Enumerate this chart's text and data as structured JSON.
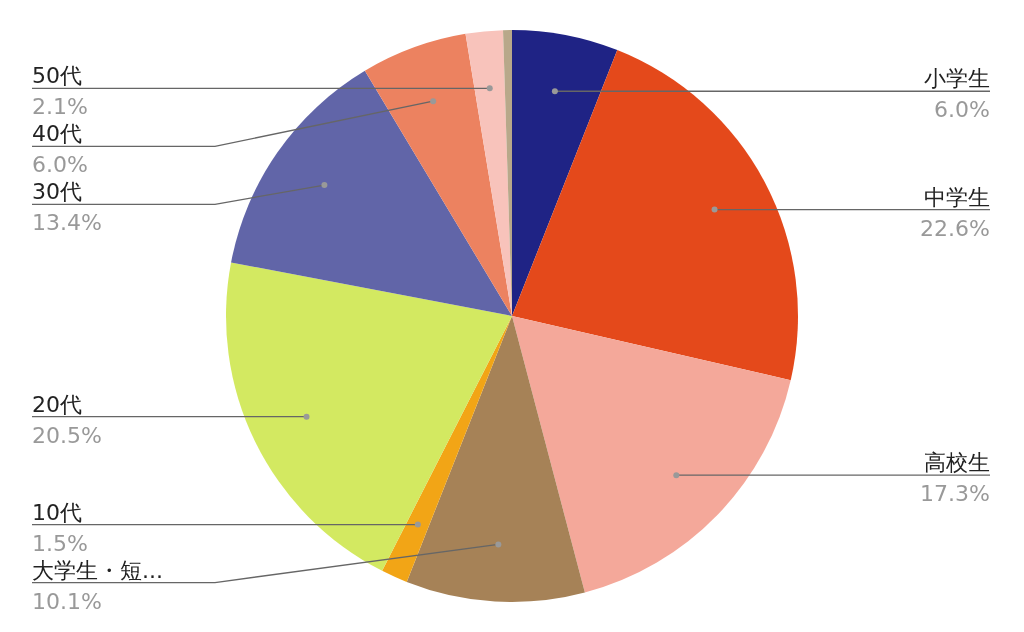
{
  "chart_data": {
    "type": "pie",
    "categories": [
      "小学生",
      "中学生",
      "高校生",
      "大学生・短...",
      "10代",
      "20代",
      "30代",
      "40代",
      "50代",
      null
    ],
    "values": [
      6.0,
      22.6,
      17.3,
      10.1,
      1.5,
      20.5,
      13.4,
      6.0,
      2.1,
      0.5
    ],
    "colors": [
      "#1f2385",
      "#e4491b",
      "#f4a89a",
      "#a68257",
      "#f2a516",
      "#d3e961",
      "#6165a8",
      "#ec8260",
      "#f8c3bb",
      "#b8a88a"
    ],
    "value_labels": [
      "6.0%",
      "22.6%",
      "17.3%",
      "10.1%",
      "1.5%",
      "20.5%",
      "13.4%",
      "6.0%",
      "2.1%",
      null
    ],
    "legend": false
  }
}
